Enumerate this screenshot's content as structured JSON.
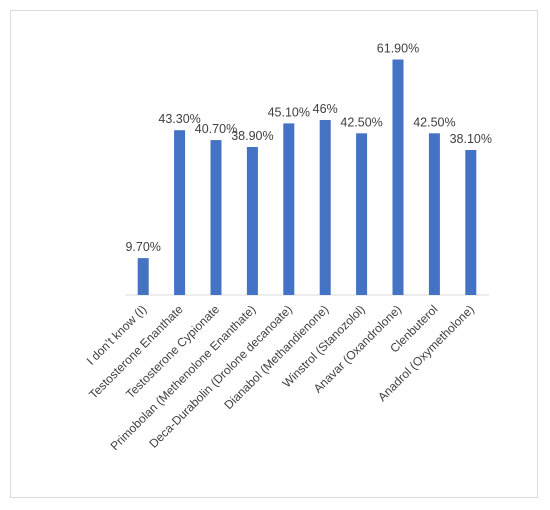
{
  "chart_data": {
    "type": "bar",
    "title": "",
    "xlabel": "",
    "ylabel": "",
    "ylim": [
      0,
      70
    ],
    "grid": false,
    "legend": "none",
    "categories": [
      "I don’t know (I)",
      "Testosterone Enanthate",
      "Testosterone Cypionate",
      "Primobolan (Methenolone Enanthate)",
      "Deca-Durabolin (Drolone decanoate)",
      "Dianabol (Methandienone)",
      "Winstrol (Stanozolol)",
      "Anavar (Oxandrolone)",
      "Clenbuterol",
      "Anadrol (Oxymetholone)"
    ],
    "values": [
      9.7,
      43.3,
      40.7,
      38.9,
      45.1,
      46,
      42.5,
      61.9,
      42.5,
      38.1
    ],
    "data_labels": [
      "9.70%",
      "43.30%",
      "40.70%",
      "38.90%",
      "45.10%",
      "46%",
      "42.50%",
      "61.90%",
      "42.50%",
      "38.10%"
    ],
    "colors": {
      "bar": "#4472c4",
      "axis": "#d9d9d9",
      "text": "#404040"
    }
  }
}
